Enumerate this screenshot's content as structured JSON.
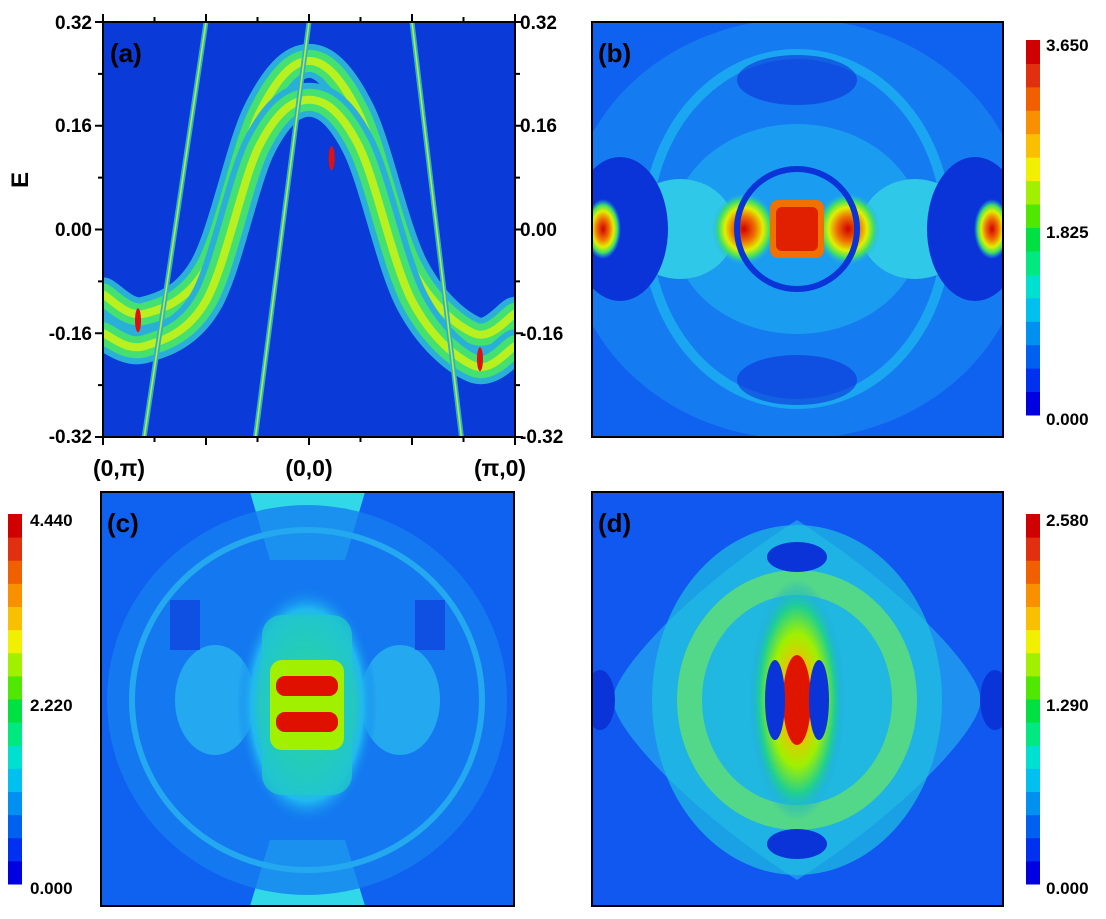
{
  "chart_data": [
    {
      "panel": "(a)",
      "type": "heatmap",
      "ylabel": "E",
      "ylim": [
        -0.32,
        0.32
      ],
      "yticks": [
        "0.32",
        "0.16",
        "0.00",
        "-0.16",
        "-0.32"
      ],
      "yticks_right": [
        "0.32",
        "0.16",
        "0.00",
        "-0.16",
        "-0.32"
      ],
      "xticks": [
        "(0,π)",
        "(0,0)",
        "(π,0)"
      ],
      "colors": {
        "background": "#0a3ad8",
        "band_outer": "#2ab0d8",
        "band_mid": "#44e070",
        "band_core": "#b8f020",
        "hotspot": "#e01010"
      },
      "bands": [
        {
          "name": "",
          "points": [
            [
              0.0,
              -0.1
            ],
            [
              0.1,
              -0.13
            ],
            [
              0.25,
              -0.06
            ],
            [
              0.38,
              0.18
            ],
            [
              0.5,
              0.26
            ],
            [
              0.62,
              0.18
            ],
            [
              0.75,
              -0.06
            ],
            [
              0.9,
              -0.16
            ],
            [
              1.0,
              -0.13
            ]
          ]
        },
        {
          "name": "",
          "points": [
            [
              0.0,
              -0.16
            ],
            [
              0.1,
              -0.18
            ],
            [
              0.25,
              -0.11
            ],
            [
              0.38,
              0.13
            ],
            [
              0.5,
              0.2
            ],
            [
              0.62,
              0.13
            ],
            [
              0.75,
              -0.11
            ],
            [
              0.9,
              -0.21
            ],
            [
              1.0,
              -0.18
            ]
          ]
        }
      ],
      "lines": [
        [
          [
            0.1,
            -0.32
          ],
          [
            0.25,
            0.32
          ]
        ],
        [
          [
            0.37,
            -0.32
          ],
          [
            0.5,
            0.32
          ]
        ],
        [
          [
            0.75,
            0.32
          ],
          [
            0.87,
            -0.32
          ]
        ]
      ]
    },
    {
      "panel": "(b)",
      "type": "heatmap",
      "colorbar": {
        "max": "3.650",
        "mid": "1.825",
        "min": "0.000"
      }
    },
    {
      "panel": "(c)",
      "type": "heatmap",
      "colorbar": {
        "max": "4.440",
        "mid": "2.220",
        "min": "0.000"
      }
    },
    {
      "panel": "(d)",
      "type": "heatmap",
      "colorbar": {
        "max": "2.580",
        "mid": "1.290",
        "min": "0.000"
      }
    }
  ],
  "colormap": [
    "#0000e0",
    "#0030f0",
    "#0060f0",
    "#0090f0",
    "#00c0f0",
    "#00e0d0",
    "#00e880",
    "#00e040",
    "#50e800",
    "#a0f000",
    "#f0f000",
    "#f8c000",
    "#f89000",
    "#f06000",
    "#e03010",
    "#d00000"
  ]
}
